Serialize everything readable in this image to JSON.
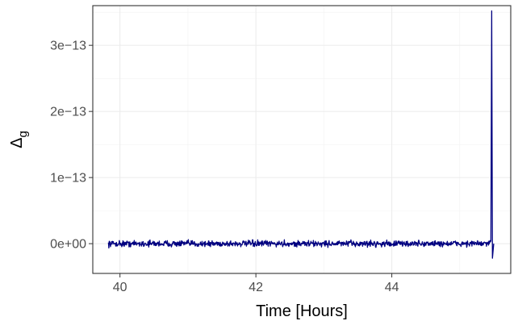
{
  "chart_data": {
    "type": "line",
    "title": "",
    "xlabel": "Time [Hours]",
    "ylabel_main": "Δ",
    "ylabel_sub": "g",
    "xlim": [
      39.6,
      45.75
    ],
    "ylim": [
      -4.5e-14,
      3.6e-13
    ],
    "x_ticks": [
      40,
      42,
      44
    ],
    "x_tick_labels": [
      "40",
      "42",
      "44"
    ],
    "y_ticks": [
      0,
      1e-13,
      2e-13,
      3e-13
    ],
    "y_tick_labels": [
      "0e+00",
      "1e−13",
      "2e−13",
      "3e−13"
    ],
    "grid": true,
    "legend": "none",
    "series": [
      {
        "color": "#000080",
        "x_start": 39.83,
        "x_end": 45.5,
        "baseline": 0,
        "noise_amplitude": 7e-15,
        "spike": {
          "x": 45.47,
          "y": 3.52e-13
        },
        "dip": {
          "x": 45.48,
          "y": -2.2e-14
        }
      }
    ]
  }
}
